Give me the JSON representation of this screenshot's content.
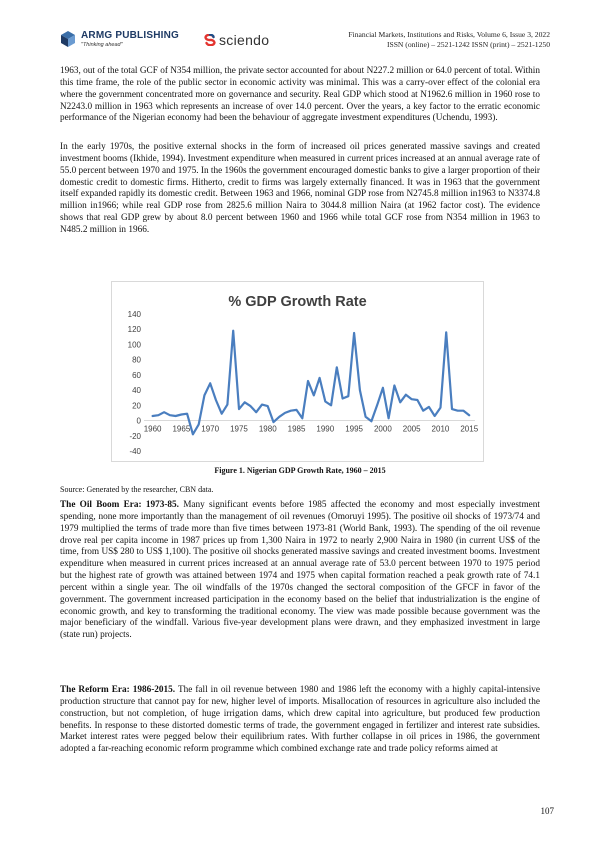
{
  "header": {
    "publisher_name": "ARMG Publishing",
    "publisher_slogan": "\"Thinking ahead\"",
    "partner_name": "sciendo",
    "journal_line1": "Financial Markets, Institutions and Risks, Volume 6, Issue 3, 2022",
    "journal_line2": "ISSN (online) – 2521-1242 ISSN (print) – 2521-1250"
  },
  "paragraphs": {
    "p1": "1963, out of the total GCF of N354 million, the private sector accounted for about N227.2 million or 64.0 percent of total. Within this time frame, the role of the public sector in economic activity was minimal. This was a carry-over effect of the colonial era where the government concentrated more on governance and security. Real GDP which stood at N1962.6 million in 1960 rose to N2243.0 million in 1963 which represents an increase of over 14.0 percent. Over the years, a key factor to the erratic economic performance of the Nigerian economy had been the behaviour of aggregate investment expenditures (Uchendu, 1993).",
    "p2": "In the early 1970s, the positive external shocks in the form of increased oil prices generated massive savings and created investment booms (Ikhide, 1994). Investment expenditure when measured in current prices increased at an annual average rate of 55.0 percent between 1970 and 1975. In the 1960s the government encouraged domestic banks to give a larger proportion of their domestic credit to domestic firms. Hitherto, credit to firms was largely externally financed. It was in 1963 that the government itself expanded rapidly its domestic credit. Between 1963 and 1966, nominal GDP rose from N2745.8 million in1963 to N3374.8 million in1966; while real GDP rose from 2825.6 million Naira to 3044.8 million Naira (at 1962 factor cost). The evidence shows that real GDP grew by about 8.0 percent between 1960 and 1966 while total GCF rose from N354 million in 1963 to N485.2 million in 1966.",
    "p3_heading": "The Oil Boom Era: 1973-85.",
    "p3": " Many significant events before 1985 affected the economy and most especially investment spending, none more importantly than the management of oil revenues (Omoruyi 1995). The positive oil shocks of 1973/74 and 1979 multiplied the terms of trade more than five times between 1973-81 (World Bank, 1993). The spending of the oil revenue drove real per capita income in 1987 prices up from 1,300 Naira in 1972 to nearly 2,900 Naira in 1980 (in current US$ of the time, from US$ 280 to US$ 1,100). The positive oil shocks generated massive savings and created investment booms. Investment expenditure when measured in current prices increased at an annual average rate of 53.0 percent between 1970 to 1975 period but the highest rate of growth was attained between 1974 and 1975 when capital formation reached a peak growth rate of 74.1 percent within a single year. The oil windfalls of the 1970s changed the sectoral composition of the GFCF in favor of the government. The government increased participation in the economy based on the belief that industrialization is the engine of economic growth, and key to transforming the traditional economy. The view was made possible because government was the major beneficiary of the windfall. Various five-year development plans were drawn, and they emphasized investment in large (state run) projects.",
    "p4_heading": "The Reform Era: 1986-2015.",
    "p4": " The fall in oil revenue between 1980 and 1986 left the economy with a highly capital-intensive production structure that cannot pay for new, higher level of imports. Misallocation of resources in agriculture also included the construction, but not completion, of huge irrigation dams, which drew capital into agriculture, but produced few production benefits. In response to these distorted domestic terms of trade, the government engaged in fertilizer and interest rate subsidies. Market interest rates were pegged below their equilibrium rates. With further collapse in oil prices in 1986, the government adopted a far-reaching economic reform programme which combined exchange rate and trade policy reforms aimed at"
  },
  "figure": {
    "caption": "Figure 1. Nigerian GDP Growth Rate, 1960 – 2015",
    "source": "Source: Generated by the researcher, CBN data."
  },
  "page_number": "107",
  "colors": {
    "line": "#4a7ebf",
    "axis": "#d9d9d9",
    "logo_blue": "#1e3a64"
  },
  "chart_data": {
    "type": "line",
    "title": "% GDP Growth Rate",
    "xlabel": "",
    "ylabel": "",
    "ylim": [
      -40,
      140
    ],
    "y_ticks": [
      140,
      120,
      100,
      80,
      60,
      40,
      20,
      0,
      -20,
      -40
    ],
    "x_ticks": [
      1960,
      1965,
      1970,
      1975,
      1980,
      1985,
      1990,
      1995,
      2000,
      2005,
      2010,
      2015
    ],
    "grid": false,
    "legend": "none",
    "x": [
      1960,
      1961,
      1962,
      1963,
      1964,
      1965,
      1966,
      1967,
      1968,
      1969,
      1970,
      1971,
      1972,
      1973,
      1974,
      1975,
      1976,
      1977,
      1978,
      1979,
      1980,
      1981,
      1982,
      1983,
      1984,
      1985,
      1986,
      1987,
      1988,
      1989,
      1990,
      1991,
      1992,
      1993,
      1994,
      1995,
      1996,
      1997,
      1998,
      1999,
      2000,
      2001,
      2002,
      2003,
      2004,
      2005,
      2006,
      2007,
      2008,
      2009,
      2010,
      2011,
      2012,
      2013,
      2014,
      2015
    ],
    "y": [
      6,
      7,
      11,
      7,
      6,
      8,
      9,
      -18,
      -5,
      33,
      49,
      27,
      9,
      21,
      118,
      15,
      24,
      19,
      11,
      21,
      19,
      -2,
      5,
      10,
      13,
      14,
      3,
      52,
      33,
      56,
      25,
      20,
      70,
      29,
      32,
      115,
      40,
      5,
      -1,
      20,
      43,
      3,
      46,
      24,
      34,
      28,
      27,
      13,
      18,
      6,
      17,
      116,
      15,
      13,
      13,
      7
    ],
    "series": [
      {
        "values_ref": "y"
      }
    ]
  }
}
